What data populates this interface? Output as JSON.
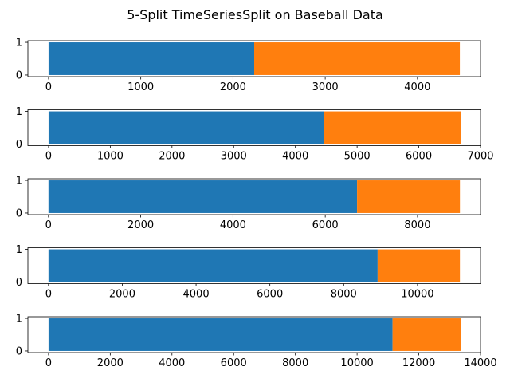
{
  "chart_data": {
    "type": "bar",
    "title": "5-Split TimeSeriesSplit on Baseball Data",
    "colors": {
      "train": "#1f77b4",
      "test": "#ff7f0e"
    },
    "ylim": [
      0,
      1
    ],
    "yticks": [
      0,
      1
    ],
    "grid": false,
    "splits": [
      {
        "train_range": [
          0,
          2230
        ],
        "test_range": [
          2230,
          4460
        ],
        "xlim": [
          -224,
          4684
        ],
        "xticks": [
          0,
          1000,
          2000,
          3000,
          4000
        ]
      },
      {
        "train_range": [
          0,
          4460
        ],
        "test_range": [
          4460,
          6690
        ],
        "xlim": [
          -335,
          7000
        ],
        "xticks": [
          0,
          1000,
          2000,
          3000,
          4000,
          5000,
          6000,
          7000
        ]
      },
      {
        "train_range": [
          0,
          6690
        ],
        "test_range": [
          6690,
          8920
        ],
        "xlim": [
          -446,
          9366
        ],
        "xticks": [
          0,
          2000,
          4000,
          6000,
          8000
        ]
      },
      {
        "train_range": [
          0,
          8920
        ],
        "test_range": [
          8920,
          11150
        ],
        "xlim": [
          -558,
          11708
        ],
        "xticks": [
          0,
          2000,
          4000,
          6000,
          8000,
          10000
        ]
      },
      {
        "train_range": [
          0,
          11150
        ],
        "test_range": [
          11150,
          13380
        ],
        "xlim": [
          -669,
          14000
        ],
        "xticks": [
          0,
          2000,
          4000,
          6000,
          8000,
          10000,
          12000,
          14000
        ]
      }
    ]
  }
}
